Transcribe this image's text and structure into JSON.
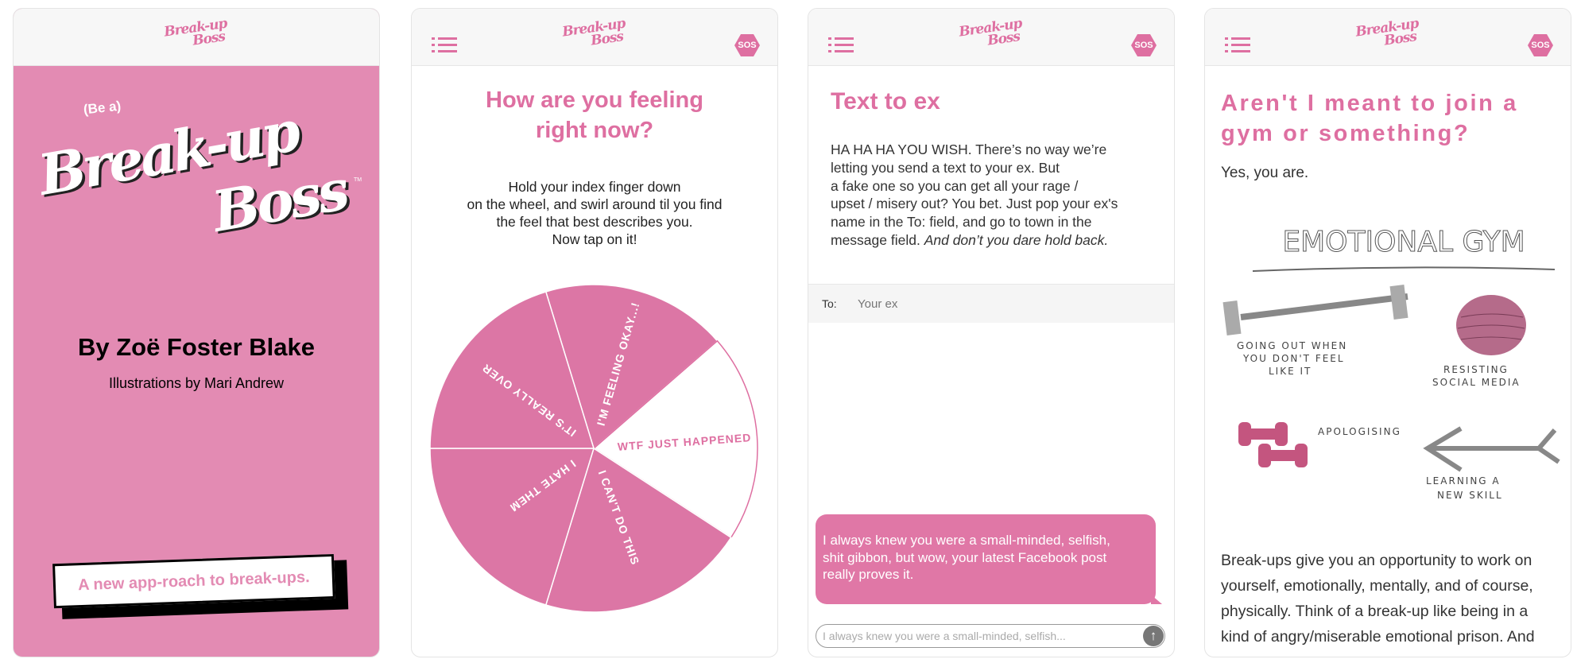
{
  "brand": {
    "logo_line1": "Break-up",
    "logo_line2": "Boss",
    "sos_label": "SOS",
    "accent": "#de6fa1",
    "cover_bg": "#e38bb3"
  },
  "screen1": {
    "pre_title": "(Be a)",
    "logo_line1": "Break-up",
    "logo_line2": "Boss",
    "tm": "TM",
    "author": "By Zoë Foster Blake",
    "illustrator": "Illustrations by Mari Andrew",
    "tagline": "A new app-roach to break-ups."
  },
  "screen2": {
    "title_line1": "How are you feeling",
    "title_line2": "right now?",
    "instructions": [
      "Hold your index finger down",
      "on the wheel, and swirl around til you find",
      "the feel that best describes you.",
      "Now tap on it!"
    ],
    "wheel": [
      {
        "label": "I'M FEELING OKAY...!",
        "selected": false
      },
      {
        "label": "WTF JUST HAPPENED",
        "selected": true
      },
      {
        "label": "I CAN'T DO THIS",
        "selected": false
      },
      {
        "label": "I HATE THEM",
        "selected": false
      },
      {
        "label": "IT'S REALLY OVER",
        "selected": false
      }
    ]
  },
  "screen3": {
    "title": "Text to ex",
    "body_lines": [
      "HA HA HA YOU WISH. There’s no way we’re",
      "letting you send a text to your ex. But",
      "a fake one so you can get all your rage /",
      "upset / misery out? You bet. Just pop your ex's",
      "name in the To: field, and go to town in the"
    ],
    "body_last_plain": "message field. ",
    "body_last_italic": "And don’t you dare hold back.",
    "to_label": "To:",
    "to_placeholder": "Your ex",
    "bubble_lines": [
      "I always knew you were a small-minded, selfish,",
      "shit gibbon, but wow, your latest Facebook post",
      "really proves it."
    ],
    "input_value": "I always knew you were a small-minded, selfish..."
  },
  "screen4": {
    "title_line1": "Aren't I meant to join a",
    "title_line2": "gym or something?",
    "subtitle": "Yes, you are.",
    "illustration": {
      "heading": "EMOTIONAL GYM",
      "item1_lines": [
        "GOING OUT WHEN",
        "YOU DON'T FEEL",
        "LIKE IT"
      ],
      "item2_lines": [
        "RESISTING",
        "SOCIAL MEDIA"
      ],
      "item3": "APOLOGISING",
      "item4_lines": [
        "LEARNING A",
        "NEW SKILL"
      ]
    },
    "body_lines": [
      "Break-ups give you an opportunity to work on",
      "yourself, emotionally, mentally, and of course,",
      "physically. Think of a break-up like being in a",
      "kind of angry/miserable emotional prison. And"
    ]
  }
}
